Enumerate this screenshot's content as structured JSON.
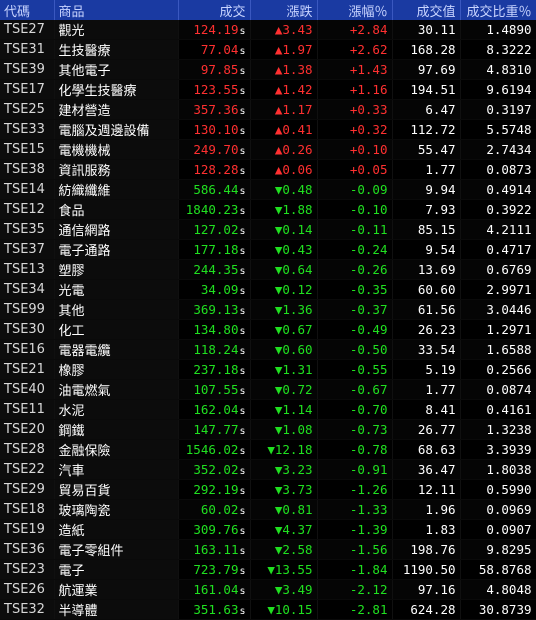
{
  "headers": [
    "代碼",
    "商品",
    "成交",
    "漲跌",
    "漲幅％",
    "成交值",
    "成交比重％"
  ],
  "colors": {
    "up": "#ff3030",
    "down": "#20e020",
    "header_bg": "#1a3aa2"
  },
  "rows": [
    {
      "code": "TSE27",
      "name": "觀光",
      "price": "124.19",
      "suffix": "s",
      "arrow": "▲",
      "change": "3.43",
      "pct": "+2.84",
      "value": "30.11",
      "weight": "1.4890",
      "dir": "up"
    },
    {
      "code": "TSE31",
      "name": "生技醫療",
      "price": "77.04",
      "suffix": "s",
      "arrow": "▲",
      "change": "1.97",
      "pct": "+2.62",
      "value": "168.28",
      "weight": "8.3222",
      "dir": "up"
    },
    {
      "code": "TSE39",
      "name": "其他電子",
      "price": "97.85",
      "suffix": "s",
      "arrow": "▲",
      "change": "1.38",
      "pct": "+1.43",
      "value": "97.69",
      "weight": "4.8310",
      "dir": "up"
    },
    {
      "code": "TSE17",
      "name": "化學生技醫療",
      "price": "123.55",
      "suffix": "s",
      "arrow": "▲",
      "change": "1.42",
      "pct": "+1.16",
      "value": "194.51",
      "weight": "9.6194",
      "dir": "up"
    },
    {
      "code": "TSE25",
      "name": "建材營造",
      "price": "357.36",
      "suffix": "s",
      "arrow": "▲",
      "change": "1.17",
      "pct": "+0.33",
      "value": "6.47",
      "weight": "0.3197",
      "dir": "up"
    },
    {
      "code": "TSE33",
      "name": "電腦及週邊設備",
      "price": "130.10",
      "suffix": "s",
      "arrow": "▲",
      "change": "0.41",
      "pct": "+0.32",
      "value": "112.72",
      "weight": "5.5748",
      "dir": "up"
    },
    {
      "code": "TSE15",
      "name": "電機機械",
      "price": "249.70",
      "suffix": "s",
      "arrow": "▲",
      "change": "0.26",
      "pct": "+0.10",
      "value": "55.47",
      "weight": "2.7434",
      "dir": "up"
    },
    {
      "code": "TSE38",
      "name": "資訊服務",
      "price": "128.28",
      "suffix": "s",
      "arrow": "▲",
      "change": "0.06",
      "pct": "+0.05",
      "value": "1.77",
      "weight": "0.0873",
      "dir": "up"
    },
    {
      "code": "TSE14",
      "name": "紡織纖維",
      "price": "586.44",
      "suffix": "s",
      "arrow": "▼",
      "change": "0.48",
      "pct": "-0.09",
      "value": "9.94",
      "weight": "0.4914",
      "dir": "dn"
    },
    {
      "code": "TSE12",
      "name": "食品",
      "price": "1840.23",
      "suffix": "s",
      "arrow": "▼",
      "change": "1.88",
      "pct": "-0.10",
      "value": "7.93",
      "weight": "0.3922",
      "dir": "dn"
    },
    {
      "code": "TSE35",
      "name": "通信網路",
      "price": "127.02",
      "suffix": "s",
      "arrow": "▼",
      "change": "0.14",
      "pct": "-0.11",
      "value": "85.15",
      "weight": "4.2111",
      "dir": "dn"
    },
    {
      "code": "TSE37",
      "name": "電子通路",
      "price": "177.18",
      "suffix": "s",
      "arrow": "▼",
      "change": "0.43",
      "pct": "-0.24",
      "value": "9.54",
      "weight": "0.4717",
      "dir": "dn"
    },
    {
      "code": "TSE13",
      "name": "塑膠",
      "price": "244.35",
      "suffix": "s",
      "arrow": "▼",
      "change": "0.64",
      "pct": "-0.26",
      "value": "13.69",
      "weight": "0.6769",
      "dir": "dn"
    },
    {
      "code": "TSE34",
      "name": "光電",
      "price": "34.09",
      "suffix": "s",
      "arrow": "▼",
      "change": "0.12",
      "pct": "-0.35",
      "value": "60.60",
      "weight": "2.9971",
      "dir": "dn"
    },
    {
      "code": "TSE99",
      "name": "其他",
      "price": "369.13",
      "suffix": "s",
      "arrow": "▼",
      "change": "1.36",
      "pct": "-0.37",
      "value": "61.56",
      "weight": "3.0446",
      "dir": "dn"
    },
    {
      "code": "TSE30",
      "name": "化工",
      "price": "134.80",
      "suffix": "s",
      "arrow": "▼",
      "change": "0.67",
      "pct": "-0.49",
      "value": "26.23",
      "weight": "1.2971",
      "dir": "dn"
    },
    {
      "code": "TSE16",
      "name": "電器電纜",
      "price": "118.24",
      "suffix": "s",
      "arrow": "▼",
      "change": "0.60",
      "pct": "-0.50",
      "value": "33.54",
      "weight": "1.6588",
      "dir": "dn"
    },
    {
      "code": "TSE21",
      "name": "橡膠",
      "price": "237.18",
      "suffix": "s",
      "arrow": "▼",
      "change": "1.31",
      "pct": "-0.55",
      "value": "5.19",
      "weight": "0.2566",
      "dir": "dn"
    },
    {
      "code": "TSE40",
      "name": "油電燃氣",
      "price": "107.55",
      "suffix": "s",
      "arrow": "▼",
      "change": "0.72",
      "pct": "-0.67",
      "value": "1.77",
      "weight": "0.0874",
      "dir": "dn"
    },
    {
      "code": "TSE11",
      "name": "水泥",
      "price": "162.04",
      "suffix": "s",
      "arrow": "▼",
      "change": "1.14",
      "pct": "-0.70",
      "value": "8.41",
      "weight": "0.4161",
      "dir": "dn"
    },
    {
      "code": "TSE20",
      "name": "鋼鐵",
      "price": "147.77",
      "suffix": "s",
      "arrow": "▼",
      "change": "1.08",
      "pct": "-0.73",
      "value": "26.77",
      "weight": "1.3238",
      "dir": "dn"
    },
    {
      "code": "TSE28",
      "name": "金融保險",
      "price": "1546.02",
      "suffix": "s",
      "arrow": "▼",
      "change": "12.18",
      "pct": "-0.78",
      "value": "68.63",
      "weight": "3.3939",
      "dir": "dn"
    },
    {
      "code": "TSE22",
      "name": "汽車",
      "price": "352.02",
      "suffix": "s",
      "arrow": "▼",
      "change": "3.23",
      "pct": "-0.91",
      "value": "36.47",
      "weight": "1.8038",
      "dir": "dn"
    },
    {
      "code": "TSE29",
      "name": "貿易百貨",
      "price": "292.19",
      "suffix": "s",
      "arrow": "▼",
      "change": "3.73",
      "pct": "-1.26",
      "value": "12.11",
      "weight": "0.5990",
      "dir": "dn"
    },
    {
      "code": "TSE18",
      "name": "玻璃陶瓷",
      "price": "60.02",
      "suffix": "s",
      "arrow": "▼",
      "change": "0.81",
      "pct": "-1.33",
      "value": "1.96",
      "weight": "0.0969",
      "dir": "dn"
    },
    {
      "code": "TSE19",
      "name": "造紙",
      "price": "309.76",
      "suffix": "s",
      "arrow": "▼",
      "change": "4.37",
      "pct": "-1.39",
      "value": "1.83",
      "weight": "0.0907",
      "dir": "dn"
    },
    {
      "code": "TSE36",
      "name": "電子零組件",
      "price": "163.11",
      "suffix": "s",
      "arrow": "▼",
      "change": "2.58",
      "pct": "-1.56",
      "value": "198.76",
      "weight": "9.8295",
      "dir": "dn"
    },
    {
      "code": "TSE23",
      "name": "電子",
      "price": "723.79",
      "suffix": "s",
      "arrow": "▼",
      "change": "13.55",
      "pct": "-1.84",
      "value": "1190.50",
      "weight": "58.8768",
      "dir": "dn"
    },
    {
      "code": "TSE26",
      "name": "航運業",
      "price": "161.04",
      "suffix": "s",
      "arrow": "▼",
      "change": "3.49",
      "pct": "-2.12",
      "value": "97.16",
      "weight": "4.8048",
      "dir": "dn"
    },
    {
      "code": "TSE32",
      "name": "半導體",
      "price": "351.63",
      "suffix": "s",
      "arrow": "▼",
      "change": "10.15",
      "pct": "-2.81",
      "value": "624.28",
      "weight": "30.8739",
      "dir": "dn"
    }
  ]
}
